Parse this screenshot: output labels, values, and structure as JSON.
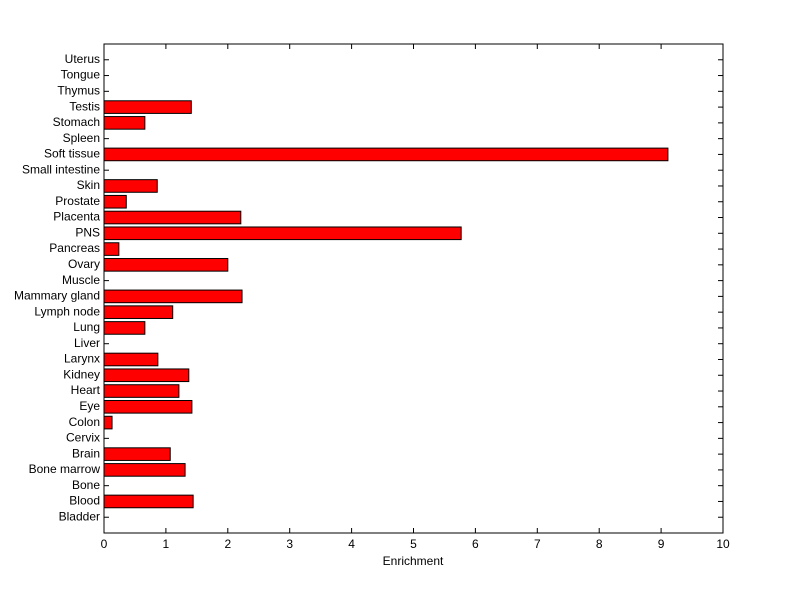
{
  "chart_data": {
    "type": "barh",
    "xlabel": "Enrichment",
    "categories": [
      "Bladder",
      "Blood",
      "Bone",
      "Bone marrow",
      "Brain",
      "Cervix",
      "Colon",
      "Eye",
      "Heart",
      "Kidney",
      "Larynx",
      "Liver",
      "Lung",
      "Lymph node",
      "Mammary gland",
      "Muscle",
      "Ovary",
      "Pancreas",
      "PNS",
      "Placenta",
      "Prostate",
      "Skin",
      "Small intestine",
      "Soft tissue",
      "Spleen",
      "Stomach",
      "Testis",
      "Thymus",
      "Tongue",
      "Uterus"
    ],
    "values": [
      0,
      1.44,
      0,
      1.31,
      1.07,
      0,
      0.13,
      1.42,
      1.21,
      1.37,
      0.87,
      0,
      0.66,
      1.11,
      2.23,
      0,
      2.0,
      0.24,
      5.77,
      2.21,
      0.36,
      0.86,
      0,
      9.11,
      0,
      0.66,
      1.41,
      0,
      0,
      0
    ],
    "color": "#ff0000",
    "xlim": [
      0,
      10
    ],
    "xticks": [
      0,
      1,
      2,
      3,
      4,
      5,
      6,
      7,
      8,
      9,
      10
    ]
  }
}
